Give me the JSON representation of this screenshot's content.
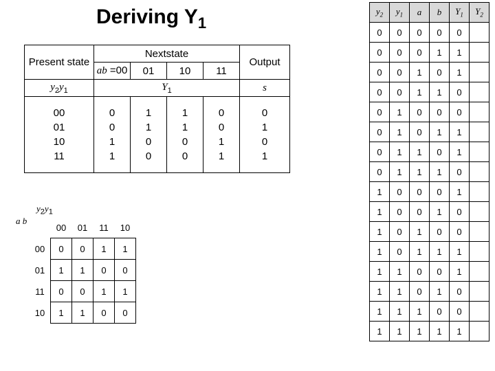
{
  "title_main": "Deriving Y",
  "title_sub": "1",
  "main": {
    "present_label": "Present state",
    "nextstate_label": "Nextstate",
    "output_label": "Output",
    "ab_prefix": "ab",
    "ab_eq": " =00",
    "cols": [
      "01",
      "10",
      "11"
    ],
    "yrow_label": "y",
    "yrow_s1": "2",
    "yrow_s2": "1",
    "Y_label": "Y",
    "Y_sub": "1",
    "s_label": "s",
    "present_vals": [
      "00",
      "01",
      "10",
      "11"
    ],
    "c00": [
      "0",
      "0",
      "1",
      "1"
    ],
    "c01": [
      "1",
      "1",
      "0",
      "0"
    ],
    "c10": [
      "1",
      "1",
      "0",
      "0"
    ],
    "c11": [
      "0",
      "0",
      "1",
      "1"
    ],
    "out": [
      "0",
      "1",
      "0",
      "1"
    ]
  },
  "kmap": {
    "top_var": "y",
    "top_s1": "2",
    "top_s2": "1",
    "left_var": "a b",
    "col_hdrs": [
      "00",
      "01",
      "11",
      "10"
    ],
    "row_hdrs": [
      "00",
      "01",
      "11",
      "10"
    ],
    "cells": [
      [
        "0",
        "0",
        "1",
        "1"
      ],
      [
        "1",
        "1",
        "0",
        "0"
      ],
      [
        "0",
        "0",
        "1",
        "1"
      ],
      [
        "1",
        "1",
        "0",
        "0"
      ]
    ]
  },
  "truth": {
    "headers": [
      {
        "t": "y",
        "s": "2"
      },
      {
        "t": "y",
        "s": "1"
      },
      {
        "t": "a",
        "s": ""
      },
      {
        "t": "b",
        "s": ""
      },
      {
        "t": "Y",
        "s": "1"
      },
      {
        "t": "Y",
        "s": "2"
      }
    ],
    "rows": [
      [
        "0",
        "0",
        "0",
        "0",
        "0",
        ""
      ],
      [
        "0",
        "0",
        "0",
        "1",
        "1",
        ""
      ],
      [
        "0",
        "0",
        "1",
        "0",
        "1",
        ""
      ],
      [
        "0",
        "0",
        "1",
        "1",
        "0",
        ""
      ],
      [
        "0",
        "1",
        "0",
        "0",
        "0",
        ""
      ],
      [
        "0",
        "1",
        "0",
        "1",
        "1",
        ""
      ],
      [
        "0",
        "1",
        "1",
        "0",
        "1",
        ""
      ],
      [
        "0",
        "1",
        "1",
        "1",
        "0",
        ""
      ],
      [
        "1",
        "0",
        "0",
        "0",
        "1",
        ""
      ],
      [
        "1",
        "0",
        "0",
        "1",
        "0",
        ""
      ],
      [
        "1",
        "0",
        "1",
        "0",
        "0",
        ""
      ],
      [
        "1",
        "0",
        "1",
        "1",
        "1",
        ""
      ],
      [
        "1",
        "1",
        "0",
        "0",
        "1",
        ""
      ],
      [
        "1",
        "1",
        "0",
        "1",
        "0",
        ""
      ],
      [
        "1",
        "1",
        "1",
        "0",
        "0",
        ""
      ],
      [
        "1",
        "1",
        "1",
        "1",
        "1",
        ""
      ]
    ]
  },
  "colors": {
    "header_bg": "#d9d9d9",
    "border": "#000000",
    "bg": "#ffffff",
    "text": "#000000"
  }
}
